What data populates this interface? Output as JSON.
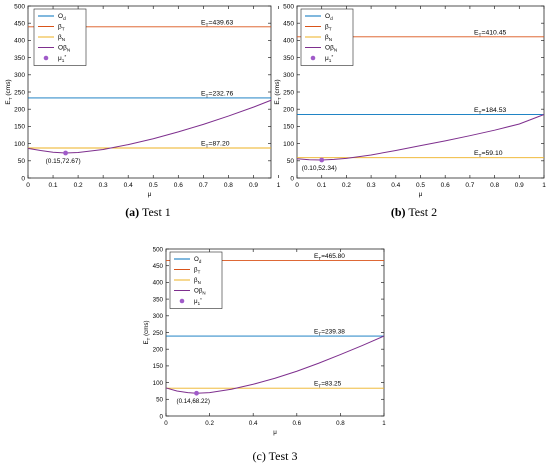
{
  "colors": {
    "O_d": "#0072BD",
    "beta_T": "#D95319",
    "beta_N": "#EDB120",
    "O_beta_N": "#7E2F8E",
    "mu1_star": "#A05BC9"
  },
  "captions": [
    {
      "label": "(a)",
      "text": "Test 1"
    },
    {
      "label": "(b)",
      "text": "Test 2"
    },
    {
      "label": "(c)",
      "text": "Test 3"
    }
  ],
  "chart_data": [
    {
      "type": "line",
      "panel": "a",
      "xlabel": "μ",
      "ylabel": "E",
      "ylabel_sub": "T",
      "ylabel_unit": " (cms)",
      "xlim": [
        0,
        0.97
      ],
      "ylim": [
        0,
        500
      ],
      "x_ticks": [
        0,
        0.1,
        0.2,
        0.3,
        0.4,
        0.5,
        0.6,
        0.7,
        0.8,
        0.9,
        1
      ],
      "x_tick_labels": [
        "0",
        "0.1",
        "0.2",
        "0.3",
        "0.4",
        "0.5",
        "0.6",
        "0.7",
        "0.8",
        "0.9",
        "1"
      ],
      "y_ticks": [
        0,
        50,
        100,
        150,
        200,
        250,
        300,
        350,
        400,
        450,
        500
      ],
      "legend": {
        "placement": "top-left",
        "entries": [
          {
            "key": "O_d",
            "base": "O",
            "sub": "d",
            "sup": "",
            "kind": "line"
          },
          {
            "key": "beta_T",
            "base": "β",
            "sub": "T",
            "sup": "",
            "kind": "line"
          },
          {
            "key": "beta_N",
            "base": "β",
            "sub": "N",
            "sup": "",
            "kind": "line"
          },
          {
            "key": "O_beta_N",
            "base": "O",
            "sub": "N",
            "sup": "",
            "mid": "β",
            "kind": "line"
          },
          {
            "key": "mu1_star",
            "base": "μ",
            "sub": "1",
            "sup": "*",
            "kind": "marker"
          }
        ]
      },
      "horizontal_lines": [
        {
          "key": "beta_T",
          "value": 439.63,
          "label": "E",
          "label_sub": "T",
          "label_value": "=439.63"
        },
        {
          "key": "O_d",
          "value": 232.76,
          "label": "E",
          "label_sub": "T",
          "label_value": "=232.76"
        },
        {
          "key": "beta_N",
          "value": 87.2,
          "label": "E",
          "label_sub": "T",
          "label_value": "=87.20"
        }
      ],
      "curve": {
        "key": "O_beta_N",
        "x": [
          0,
          0.05,
          0.1,
          0.15,
          0.2,
          0.3,
          0.4,
          0.5,
          0.6,
          0.7,
          0.8,
          0.9,
          0.97
        ],
        "y": [
          86,
          80,
          75,
          72.67,
          74,
          83,
          97,
          114,
          134,
          156,
          180,
          206,
          226
        ]
      },
      "optimum": {
        "key": "mu1_star",
        "x": 0.15,
        "y": 72.67,
        "label": "(0.15,72.67)"
      }
    },
    {
      "type": "line",
      "panel": "b",
      "xlabel": "μ",
      "ylabel": "E",
      "ylabel_sub": "T",
      "ylabel_unit": " (cms)",
      "xlim": [
        0,
        1
      ],
      "ylim": [
        0,
        500
      ],
      "x_ticks": [
        0,
        0.1,
        0.2,
        0.3,
        0.4,
        0.5,
        0.6,
        0.7,
        0.8,
        0.9,
        1
      ],
      "x_tick_labels": [
        "0",
        "0.1",
        "0.2",
        "0.3",
        "0.4",
        "0.5",
        "0.6",
        "0.7",
        "0.8",
        "0.9",
        "1"
      ],
      "y_ticks": [
        0,
        50,
        100,
        150,
        200,
        250,
        300,
        350,
        400,
        450,
        500
      ],
      "legend": {
        "placement": "top-right",
        "entries": [
          {
            "key": "O_d",
            "base": "O",
            "sub": "d",
            "sup": "",
            "kind": "line"
          },
          {
            "key": "beta_T",
            "base": "β",
            "sub": "T",
            "sup": "",
            "kind": "line"
          },
          {
            "key": "beta_N",
            "base": "β",
            "sub": "N",
            "sup": "",
            "kind": "line"
          },
          {
            "key": "O_beta_N",
            "base": "O",
            "sub": "N",
            "sup": "",
            "mid": "β",
            "kind": "line"
          },
          {
            "key": "mu1_star",
            "base": "μ",
            "sub": "1",
            "sup": "*",
            "kind": "marker"
          }
        ]
      },
      "horizontal_lines": [
        {
          "key": "beta_T",
          "value": 410.45,
          "label": "E",
          "label_sub": "T",
          "label_value": "=410.45"
        },
        {
          "key": "O_d",
          "value": 184.53,
          "label": "E",
          "label_sub": "T",
          "label_value": "=184.53"
        },
        {
          "key": "beta_N",
          "value": 59.1,
          "label": "E",
          "label_sub": "T",
          "label_value": "=59.10"
        }
      ],
      "curve": {
        "key": "O_beta_N",
        "x": [
          0,
          0.05,
          0.1,
          0.15,
          0.2,
          0.3,
          0.4,
          0.5,
          0.6,
          0.7,
          0.8,
          0.9,
          1
        ],
        "y": [
          56,
          53,
          52.34,
          54,
          57,
          67,
          80,
          94,
          108,
          123,
          139,
          157,
          184.53
        ]
      },
      "optimum": {
        "key": "mu1_star",
        "x": 0.1,
        "y": 52.34,
        "label": "(0.10,52.34)"
      }
    },
    {
      "type": "line",
      "panel": "c",
      "xlabel": "μ",
      "ylabel": "E",
      "ylabel_sub": "T",
      "ylabel_unit": " (cms)",
      "xlim": [
        0,
        1
      ],
      "ylim": [
        0,
        500
      ],
      "x_ticks": [
        0,
        0.2,
        0.4,
        0.6,
        0.8,
        1
      ],
      "x_tick_labels": [
        "0",
        "0.2",
        "0.4",
        "0.6",
        "0.8",
        "1"
      ],
      "y_ticks": [
        0,
        50,
        100,
        150,
        200,
        250,
        300,
        350,
        400,
        450,
        500
      ],
      "legend": {
        "placement": "top-right",
        "entries": [
          {
            "key": "O_d",
            "base": "O",
            "sub": "d",
            "sup": "",
            "kind": "line"
          },
          {
            "key": "beta_T",
            "base": "β",
            "sub": "T",
            "sup": "",
            "kind": "line"
          },
          {
            "key": "beta_N",
            "base": "β",
            "sub": "N",
            "sup": "",
            "kind": "line"
          },
          {
            "key": "O_beta_N",
            "base": "O",
            "sub": "N",
            "sup": "",
            "mid": "β",
            "kind": "line"
          },
          {
            "key": "mu1_star",
            "base": "μ",
            "sub": "1",
            "sup": "*",
            "kind": "marker"
          }
        ]
      },
      "horizontal_lines": [
        {
          "key": "beta_T",
          "value": 465.8,
          "label": "E",
          "label_sub": "T",
          "label_value": "=465.80"
        },
        {
          "key": "O_d",
          "value": 239.38,
          "label": "E",
          "label_sub": "T",
          "label_value": "=239.38"
        },
        {
          "key": "beta_N",
          "value": 83.25,
          "label": "E",
          "label_sub": "T",
          "label_value": "=83.25"
        }
      ],
      "curve": {
        "key": "O_beta_N",
        "x": [
          0,
          0.05,
          0.1,
          0.14,
          0.2,
          0.3,
          0.4,
          0.5,
          0.6,
          0.7,
          0.8,
          0.9,
          1
        ],
        "y": [
          84,
          75,
          70,
          68.22,
          70,
          80,
          95,
          113,
          134,
          158,
          184,
          211,
          239.38
        ]
      },
      "optimum": {
        "key": "mu1_star",
        "x": 0.14,
        "y": 68.22,
        "label": "(0.14,68.22)"
      }
    }
  ]
}
